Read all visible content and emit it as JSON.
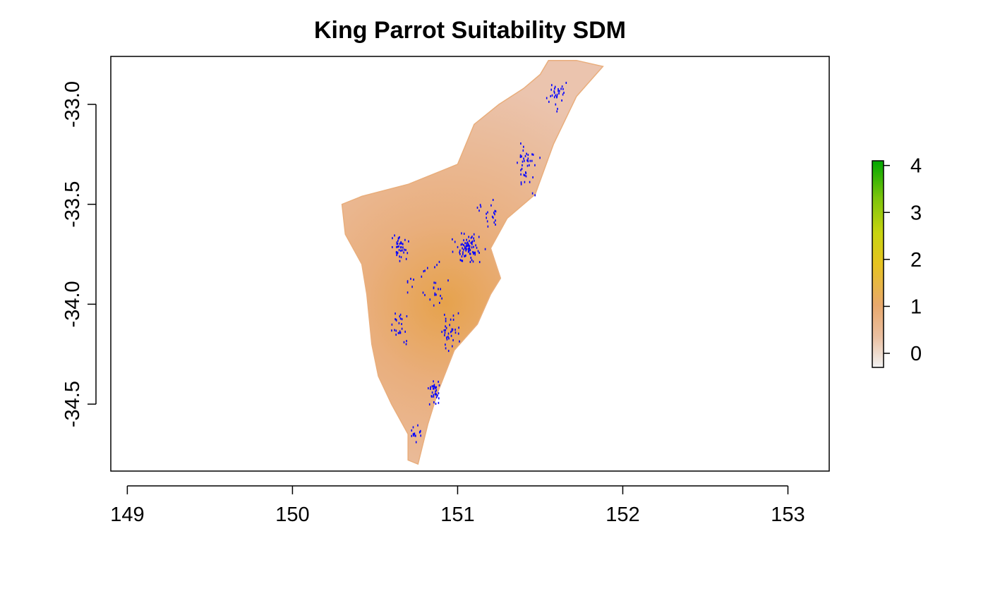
{
  "chart_data": {
    "type": "heatmap",
    "title": "King Parrot Suitability SDM",
    "xlabel": "",
    "ylabel": "",
    "xlim": [
      148.9,
      153.25
    ],
    "ylim": [
      -34.835,
      -32.76
    ],
    "x_ticks": [
      149,
      150,
      151,
      152,
      153
    ],
    "y_ticks": [
      -33.0,
      -33.5,
      -34.0,
      -34.5
    ],
    "x_tick_labels": [
      "149",
      "150",
      "151",
      "152",
      "153"
    ],
    "y_tick_labels": [
      "-33.0",
      "-33.5",
      "-34.0",
      "-34.5"
    ],
    "legend": {
      "placement": "right",
      "min": -0.3,
      "max": 4.1,
      "ticks": [
        0,
        1,
        2,
        3,
        4
      ],
      "tick_labels": [
        "0",
        "1",
        "2",
        "3",
        "4"
      ],
      "colors": [
        "#F2F2F2",
        "#EABFA0",
        "#E8A86D",
        "#E6C320",
        "#C8D410",
        "#7CC40C",
        "#00A600"
      ]
    },
    "raster": {
      "fill_low": "#EBC4AE",
      "fill_mid": "#E9AE7C",
      "fill_high": "#E6A24C",
      "region_outline": [
        [
          151.55,
          -32.78
        ],
        [
          151.72,
          -32.78
        ],
        [
          151.88,
          -32.81
        ],
        [
          151.72,
          -32.96
        ],
        [
          151.58,
          -33.2
        ],
        [
          151.47,
          -33.45
        ],
        [
          151.3,
          -33.57
        ],
        [
          151.2,
          -33.72
        ],
        [
          151.26,
          -33.87
        ],
        [
          151.2,
          -33.95
        ],
        [
          151.12,
          -34.1
        ],
        [
          150.98,
          -34.23
        ],
        [
          150.88,
          -34.44
        ],
        [
          150.82,
          -34.6
        ],
        [
          150.76,
          -34.8
        ],
        [
          150.7,
          -34.78
        ],
        [
          150.7,
          -34.65
        ],
        [
          150.6,
          -34.5
        ],
        [
          150.52,
          -34.36
        ],
        [
          150.48,
          -34.2
        ],
        [
          150.45,
          -33.95
        ],
        [
          150.42,
          -33.8
        ],
        [
          150.32,
          -33.65
        ],
        [
          150.3,
          -33.5
        ],
        [
          150.42,
          -33.46
        ],
        [
          150.7,
          -33.4
        ],
        [
          151.0,
          -33.3
        ],
        [
          151.1,
          -33.1
        ],
        [
          151.25,
          -33.0
        ],
        [
          151.4,
          -32.92
        ],
        [
          151.5,
          -32.85
        ]
      ],
      "hotspot_center": [
        150.98,
        -34.0
      ]
    },
    "occurrence_points": {
      "color": "#0000FF",
      "clusters": [
        {
          "lon": 151.06,
          "lat": -33.72,
          "spread_lon": 0.12,
          "spread_lat": 0.1,
          "count": 80
        },
        {
          "lon": 150.65,
          "lat": -33.72,
          "spread_lon": 0.07,
          "spread_lat": 0.08,
          "count": 40
        },
        {
          "lon": 150.95,
          "lat": -34.12,
          "spread_lon": 0.08,
          "spread_lat": 0.12,
          "count": 35
        },
        {
          "lon": 150.86,
          "lat": -34.44,
          "spread_lon": 0.05,
          "spread_lat": 0.1,
          "count": 35
        },
        {
          "lon": 151.42,
          "lat": -33.3,
          "spread_lon": 0.1,
          "spread_lat": 0.18,
          "count": 40
        },
        {
          "lon": 151.6,
          "lat": -32.95,
          "spread_lon": 0.07,
          "spread_lat": 0.12,
          "count": 30
        },
        {
          "lon": 150.65,
          "lat": -34.12,
          "spread_lon": 0.07,
          "spread_lat": 0.15,
          "count": 25
        },
        {
          "lon": 150.82,
          "lat": -33.9,
          "spread_lon": 0.2,
          "spread_lat": 0.15,
          "count": 30
        },
        {
          "lon": 151.2,
          "lat": -33.55,
          "spread_lon": 0.1,
          "spread_lat": 0.1,
          "count": 20
        },
        {
          "lon": 150.75,
          "lat": -34.65,
          "spread_lon": 0.05,
          "spread_lat": 0.08,
          "count": 15
        }
      ]
    }
  }
}
